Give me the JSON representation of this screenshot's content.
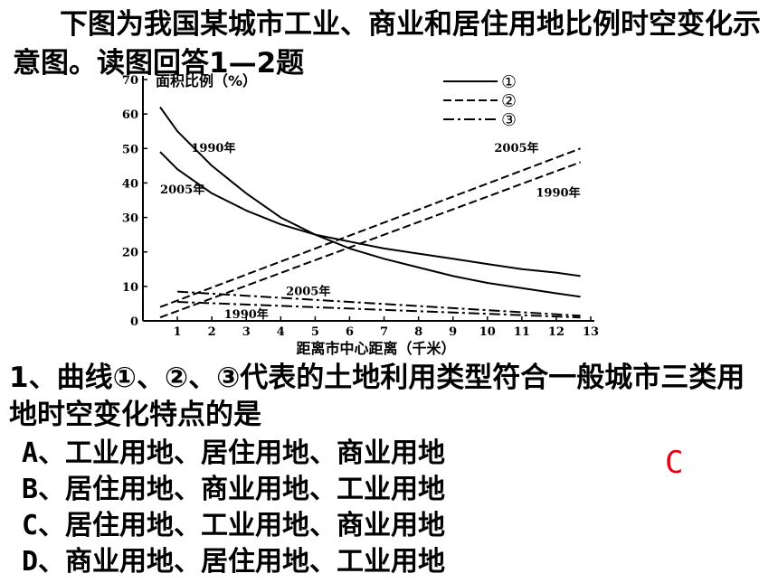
{
  "intro_text": "下图为我国某城市工业、商业和居住用地比例时空变化示意图。读图回答1—2题",
  "question": {
    "text": "1、曲线①、②、③代表的土地利用类型符合一般城市三类用地时空变化特点的是",
    "options": [
      "A、工业用地、居住用地、商业用地",
      "B、居住用地、商业用地、工业用地",
      "C、居住用地、工业用地、商业用地",
      "D、商业用地、居住用地、工业用地"
    ],
    "answer": "C",
    "answer_color": "#e60012"
  },
  "chart_data": {
    "type": "line",
    "ylabel": "面积比例（%）",
    "xlabel": "距离市中心距离（千米）",
    "xlim": [
      0,
      13
    ],
    "ylim": [
      0,
      70
    ],
    "x_ticks": [
      1,
      2,
      3,
      4,
      5,
      6,
      7,
      8,
      9,
      10,
      11,
      12,
      13
    ],
    "y_ticks": [
      0,
      10,
      20,
      30,
      40,
      50,
      60,
      70
    ],
    "grid": false,
    "legend_position": "top-right",
    "legend": [
      "①",
      "②",
      "③"
    ],
    "series": [
      {
        "style": "solid",
        "legend": "①",
        "label": "1990年",
        "x": [
          0.5,
          1,
          2,
          3,
          4,
          5,
          6,
          7,
          8,
          9,
          10,
          11,
          12,
          12.7
        ],
        "y": [
          62,
          55,
          45,
          37,
          30,
          25,
          21,
          18,
          15.5,
          13,
          11,
          9.5,
          8,
          7
        ]
      },
      {
        "style": "solid",
        "legend": "①",
        "label": "2005年",
        "x": [
          0.5,
          1,
          2,
          3,
          4,
          5,
          6,
          7,
          8,
          9,
          10,
          11,
          12,
          12.7
        ],
        "y": [
          49,
          44,
          37,
          32,
          28,
          25,
          23,
          21,
          19.5,
          18,
          16.5,
          15,
          14,
          13
        ]
      },
      {
        "style": "dashed",
        "legend": "②",
        "label": "2005年",
        "x": [
          0.5,
          12.7
        ],
        "y": [
          4,
          50
        ]
      },
      {
        "style": "dashed",
        "legend": "②",
        "label": "1990年",
        "x": [
          0.5,
          12.7
        ],
        "y": [
          1,
          46
        ]
      },
      {
        "style": "dashdot",
        "legend": "③",
        "label": "2005年",
        "x": [
          1,
          12.7
        ],
        "y": [
          8.5,
          1.5
        ]
      },
      {
        "style": "dashdot",
        "legend": "③",
        "label": "1990年",
        "x": [
          1,
          12.7
        ],
        "y": [
          5.5,
          1
        ]
      }
    ],
    "colors": {
      "line": "#000000"
    }
  }
}
